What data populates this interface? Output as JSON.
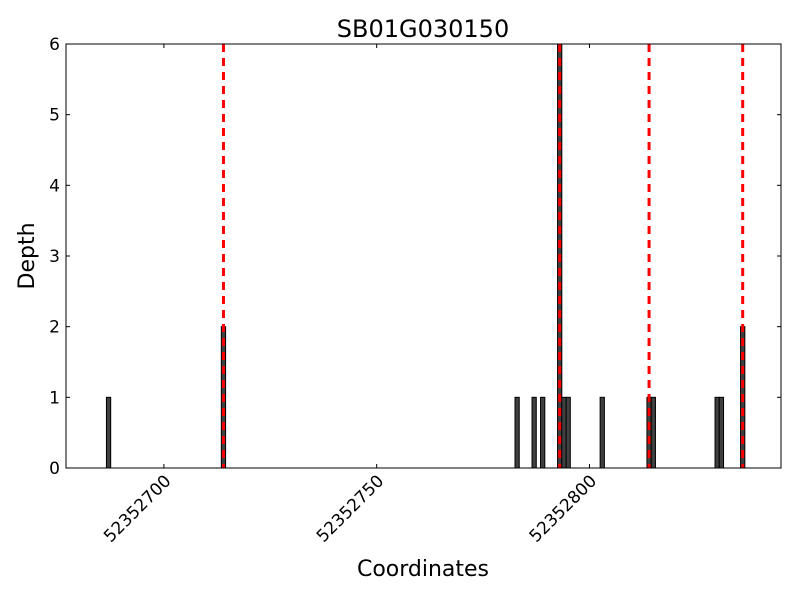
{
  "chart_data": {
    "type": "bar",
    "title": "SB01G030150",
    "xlabel": "Coordinates",
    "ylabel": "Depth",
    "xlim": [
      52352677,
      52352845
    ],
    "ylim": [
      0,
      6
    ],
    "xticks": [
      52352700,
      52352750,
      52352800
    ],
    "yticks": [
      0,
      1,
      2,
      3,
      4,
      5,
      6
    ],
    "grid": false,
    "bar_color": "#404040",
    "bar_edge_color": "#000000",
    "bar_width": 1,
    "bars": [
      {
        "x": 52352687,
        "y": 1
      },
      {
        "x": 52352714,
        "y": 2
      },
      {
        "x": 52352783,
        "y": 1
      },
      {
        "x": 52352787,
        "y": 1
      },
      {
        "x": 52352789,
        "y": 1
      },
      {
        "x": 52352793,
        "y": 6
      },
      {
        "x": 52352794,
        "y": 1
      },
      {
        "x": 52352795,
        "y": 1
      },
      {
        "x": 52352803,
        "y": 1
      },
      {
        "x": 52352814,
        "y": 1
      },
      {
        "x": 52352815,
        "y": 1
      },
      {
        "x": 52352830,
        "y": 1
      },
      {
        "x": 52352831,
        "y": 1
      },
      {
        "x": 52352836,
        "y": 2
      }
    ],
    "vlines": [
      52352714,
      52352793,
      52352814,
      52352836
    ],
    "vline_color": "#ff0000"
  }
}
